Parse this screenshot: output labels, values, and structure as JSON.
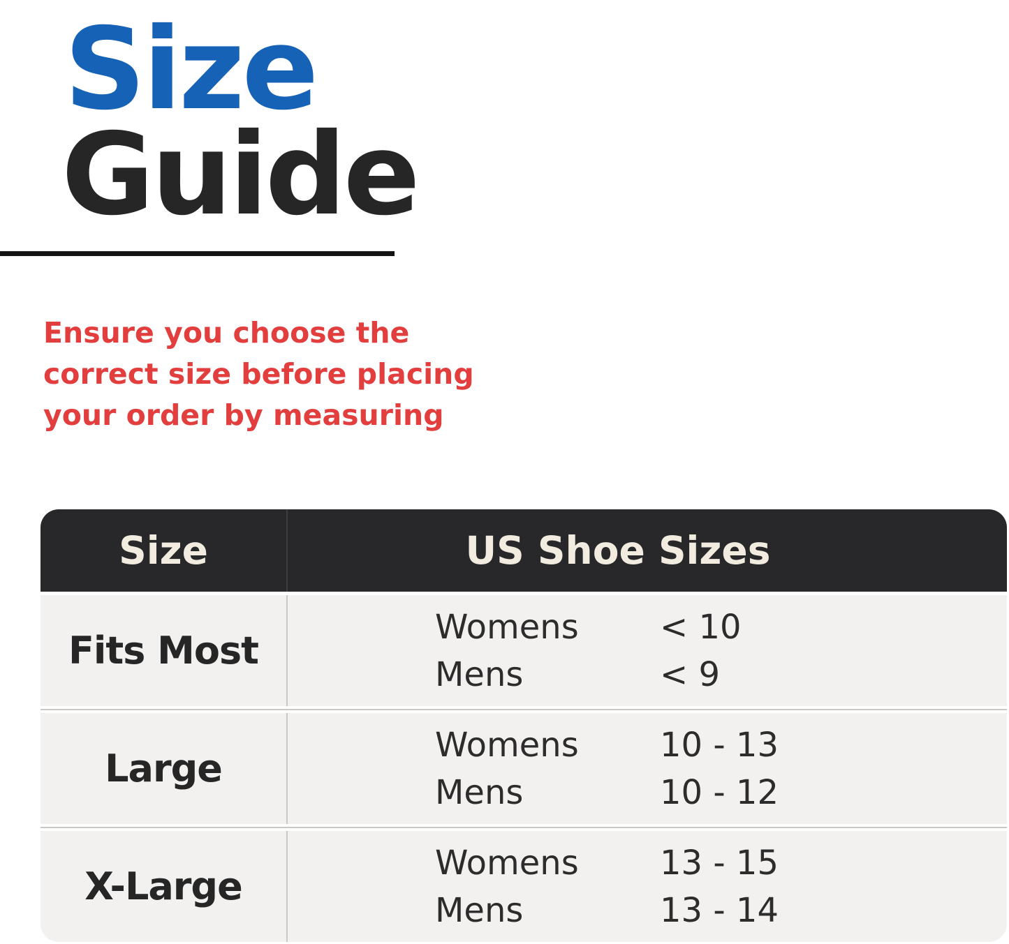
{
  "title": {
    "word1": "Size",
    "word2": "Guide",
    "word1_color": "#1662b6",
    "word2_color": "#262626"
  },
  "notice": {
    "color": "#e23e3e",
    "lines": [
      "Ensure you choose the",
      "correct size before placing",
      "your order by measuring"
    ]
  },
  "size_table": {
    "header_bg": "#28282a",
    "header_text_color": "#f1ecdf",
    "row_bg": "#f2f1ef",
    "divider_color": "#c9c8c5",
    "columns": [
      "Size",
      "US Shoe Sizes"
    ],
    "rows": [
      {
        "size": "Fits Most",
        "entries": [
          {
            "label": "Womens",
            "value": "< 10"
          },
          {
            "label": "Mens",
            "value": "< 9"
          }
        ]
      },
      {
        "size": "Large",
        "entries": [
          {
            "label": "Womens",
            "value": "10 - 13"
          },
          {
            "label": "Mens",
            "value": "10 - 12"
          }
        ]
      },
      {
        "size": "X-Large",
        "entries": [
          {
            "label": "Womens",
            "value": "13 - 15"
          },
          {
            "label": "Mens",
            "value": "13 - 14"
          }
        ]
      }
    ]
  }
}
